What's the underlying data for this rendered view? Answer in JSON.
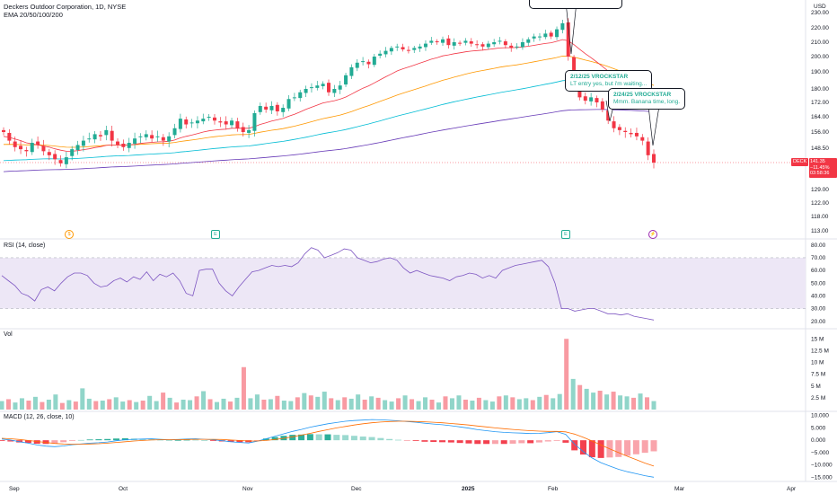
{
  "header": {
    "title": "Deckers Outdoor Corporation, 1D, NYSE",
    "ema_label": "EMA 20/50/100/200",
    "currency": "USD"
  },
  "price_tag": {
    "ticker": "DECK",
    "price": "141.35",
    "change": "−11.45%",
    "countdown": "03:58:36"
  },
  "panes": {
    "rsi_label": "RSI (14, close)",
    "vol_label": "Vol",
    "macd_label": "MACD (12, 26, close, 10)"
  },
  "annotations": [
    {
      "line1": "2/12/25 VROCKSTAR",
      "line2": "LT entry yes, but i'm waiting..."
    },
    {
      "line1": "2/24/25 VROCKSTAR",
      "line2": "Mmm. Banana time, long."
    }
  ],
  "colors": {
    "up": "#22ab94",
    "down": "#f23645",
    "ema20": "#f23645",
    "ema50": "#ff9800",
    "ema100": "#00bcd4",
    "ema200": "#673ab7",
    "rsi_line": "#7e57c2",
    "rsi_band": "#ede7f6",
    "macd_line": "#2196f3",
    "signal_line": "#ff6d00"
  },
  "icons": {
    "earnings": "earnings-e-icon",
    "dividend": "dividend-icon",
    "split": "flash-icon"
  },
  "chart_data": [
    {
      "type": "candlestick",
      "title": "Deckers Outdoor Corporation, 1D, NYSE",
      "y_ticks": [
        "230.00",
        "220.00",
        "210.00",
        "200.00",
        "190.00",
        "180.00",
        "172.00",
        "164.00",
        "156.00",
        "148.50",
        "141.35",
        "129.00",
        "122.00",
        "118.00",
        "113.00"
      ],
      "x_ticks": [
        "Sep",
        "Oct",
        "Nov",
        "Dec",
        "2025",
        "Feb",
        "Mar",
        "Apr"
      ],
      "ylim": [
        113,
        233
      ],
      "close_prices": [
        156,
        152,
        149,
        148,
        147,
        151,
        150,
        147,
        145,
        143,
        141,
        144,
        148,
        150,
        152,
        153,
        155,
        154,
        157,
        152,
        150,
        149,
        151,
        153,
        154,
        155,
        153,
        154,
        152,
        154,
        158,
        163,
        160,
        161,
        162,
        163,
        164,
        162,
        161,
        160,
        162,
        158,
        156,
        157,
        166,
        170,
        168,
        170,
        167,
        169,
        174,
        175,
        178,
        180,
        181,
        182,
        183,
        178,
        180,
        182,
        188,
        193,
        196,
        197,
        195,
        200,
        202,
        204,
        206,
        207,
        205,
        204,
        206,
        207,
        209,
        211,
        210,
        212,
        208,
        210,
        209,
        211,
        209,
        208,
        207,
        209,
        210,
        211,
        208,
        206,
        207,
        210,
        212,
        214,
        214,
        216,
        214,
        219,
        223,
        200,
        183,
        175,
        173,
        175,
        172,
        168,
        162,
        158,
        157,
        156,
        155,
        154,
        152,
        145,
        141.35
      ],
      "ema20": [
        154,
        153.5,
        152.8,
        152,
        151,
        150.5,
        150,
        149.5,
        149,
        148.2,
        147.5,
        147,
        147,
        147.3,
        147.8,
        148.2,
        148.8,
        149.2,
        149.8,
        150,
        150,
        150,
        150,
        150.3,
        150.7,
        151,
        151.2,
        151.4,
        151.5,
        151.7,
        152.3,
        153.3,
        154,
        154.6,
        155.3,
        156,
        156.6,
        157,
        157.3,
        157.5,
        158,
        158,
        158,
        158,
        158.8,
        160,
        160.8,
        161.8,
        162.4,
        163.1,
        164.3,
        165.4,
        166.7,
        168.1,
        169.3,
        170.5,
        171.7,
        172.3,
        173,
        173.9,
        175.2,
        176.9,
        178.7,
        180.4,
        181.8,
        183.5,
        185.3,
        187.1,
        188.8,
        190.6,
        192,
        193.2,
        194.4,
        195.7,
        197,
        198.3,
        199.3,
        200.5,
        201.2,
        202,
        202.6,
        203.3,
        203.8,
        204.2,
        204.5,
        205,
        205.5,
        206,
        206.2,
        206.2,
        206.3,
        206.7,
        207.2,
        207.8,
        208.5,
        209.1,
        209.6,
        210.6,
        211.8,
        211,
        208.3,
        205.1,
        202,
        199.3,
        196.5,
        193.6,
        190.5,
        187.4,
        184.5,
        181.8,
        179.2,
        176.7,
        174.3,
        171.5,
        168.6
      ]
    },
    {
      "type": "line",
      "name": "RSI (14, close)",
      "y_ticks": [
        "80.00",
        "70.00",
        "60.00",
        "50.00",
        "40.00",
        "30.00",
        "20.00"
      ],
      "ylim": [
        17,
        82
      ],
      "band": [
        30,
        70
      ],
      "values": [
        56,
        52,
        48,
        42,
        40,
        36,
        45,
        47,
        44,
        50,
        55,
        58,
        58,
        56,
        50,
        47,
        48,
        52,
        54,
        51,
        55,
        53,
        59,
        52,
        57,
        55,
        58,
        52,
        42,
        40,
        60,
        61,
        61,
        50,
        44,
        40,
        47,
        53,
        59,
        60,
        62,
        64,
        63,
        64,
        63,
        66,
        73,
        78,
        76,
        70,
        72,
        74,
        77,
        76,
        70,
        68,
        66,
        67,
        69,
        70,
        68,
        62,
        58,
        60,
        58,
        56,
        55,
        54,
        52,
        55,
        56,
        58,
        57,
        54,
        56,
        54,
        60,
        62,
        64,
        65,
        66,
        67,
        68,
        63,
        50,
        30,
        30,
        28,
        29,
        30,
        30,
        28,
        26,
        26,
        25,
        26,
        24,
        23,
        22,
        21
      ],
      "last": "21.5"
    },
    {
      "type": "bar",
      "name": "Vol",
      "y_ticks": [
        "15 M",
        "12.5 M",
        "10 M",
        "7.5 M",
        "5 M",
        "2.5 M"
      ],
      "ylim": [
        0,
        16000000
      ],
      "values": [
        1.8,
        2.2,
        1.5,
        2.4,
        1.9,
        2.7,
        1.6,
        2.1,
        3.2,
        1.4,
        2.0,
        1.7,
        4.5,
        2.3,
        1.8,
        1.9,
        2.2,
        2.6,
        1.7,
        2.0,
        1.6,
        1.9,
        2.9,
        1.8,
        3.6,
        2.5,
        1.5,
        2.1,
        2.0,
        2.8,
        3.9,
        2.2,
        1.6,
        2.3,
        1.7,
        2.5,
        9.0,
        2.4,
        3.2,
        2.1,
        2.2,
        2.9,
        1.9,
        1.8,
        2.6,
        3.5,
        3.0,
        2.7,
        3.8,
        2.4,
        2.0,
        2.6,
        2.3,
        3.2,
        2.1,
        2.8,
        2.5,
        2.0,
        1.7,
        2.4,
        3.0,
        2.2,
        1.8,
        2.6,
        2.1,
        1.5,
        2.8,
        2.4,
        3.0,
        2.1,
        1.9,
        2.5,
        2.0,
        1.7,
        2.8,
        3.0,
        2.6,
        2.2,
        2.4,
        2.0,
        2.7,
        3.1,
        2.4,
        3.3,
        15.0,
        6.5,
        5.2,
        4.4,
        3.6,
        4.0,
        3.2,
        3.8,
        3.0,
        2.8,
        2.5,
        3.4,
        2.6,
        1.8
      ],
      "unit": "M"
    },
    {
      "type": "histogram+line",
      "name": "MACD (12, 26, close, 10)",
      "y_ticks": [
        "10.000",
        "5.000",
        "0.000",
        "−5.000",
        "−10.000",
        "−15.000"
      ],
      "ylim": [
        -16,
        11
      ],
      "macd": [
        0.5,
        0.1,
        -0.6,
        -1.2,
        -1.9,
        -2.4,
        -2.6,
        -2.3,
        -1.8,
        -1.5,
        -1.2,
        -1.0,
        -0.7,
        -0.2,
        0.2,
        0.4,
        0.5,
        0.6,
        0.4,
        0.2,
        0.3,
        0.5,
        0.6,
        0.4,
        0.2,
        -0.2,
        -0.6,
        -0.9,
        -1.1,
        -0.4,
        0.6,
        1.6,
        2.6,
        3.6,
        4.4,
        5.3,
        6.0,
        6.7,
        7.2,
        7.7,
        8.0,
        8.2,
        8.4,
        8.3,
        8.1,
        7.9,
        7.6,
        7.3,
        6.9,
        6.6,
        6.3,
        5.9,
        5.4,
        4.9,
        4.3,
        3.9,
        3.5,
        3.2,
        3.0,
        2.9,
        2.7,
        2.8,
        3.1,
        3.5,
        2.4,
        -1.6,
        -4.6,
        -7.2,
        -9.1,
        -10.5,
        -11.8,
        -12.8,
        -13.6,
        -14.4,
        -15.0
      ],
      "signal": [
        0.8,
        0.6,
        0.3,
        -0.1,
        -0.5,
        -0.9,
        -1.3,
        -1.5,
        -1.6,
        -1.6,
        -1.5,
        -1.4,
        -1.2,
        -0.9,
        -0.6,
        -0.3,
        -0.1,
        0.1,
        0.2,
        0.2,
        0.2,
        0.3,
        0.4,
        0.4,
        0.4,
        0.3,
        0.1,
        -0.1,
        -0.3,
        -0.3,
        -0.1,
        0.3,
        0.8,
        1.4,
        2.1,
        2.8,
        3.6,
        4.3,
        5.0,
        5.6,
        6.2,
        6.7,
        7.1,
        7.4,
        7.6,
        7.7,
        7.7,
        7.6,
        7.5,
        7.3,
        7.1,
        6.8,
        6.5,
        6.2,
        5.8,
        5.4,
        5.0,
        4.7,
        4.4,
        4.1,
        3.9,
        3.7,
        3.6,
        3.6,
        3.4,
        2.5,
        1.2,
        -0.3,
        -1.9,
        -3.5,
        -5.0,
        -6.5,
        -7.9,
        -9.3,
        -10.5
      ]
    }
  ]
}
